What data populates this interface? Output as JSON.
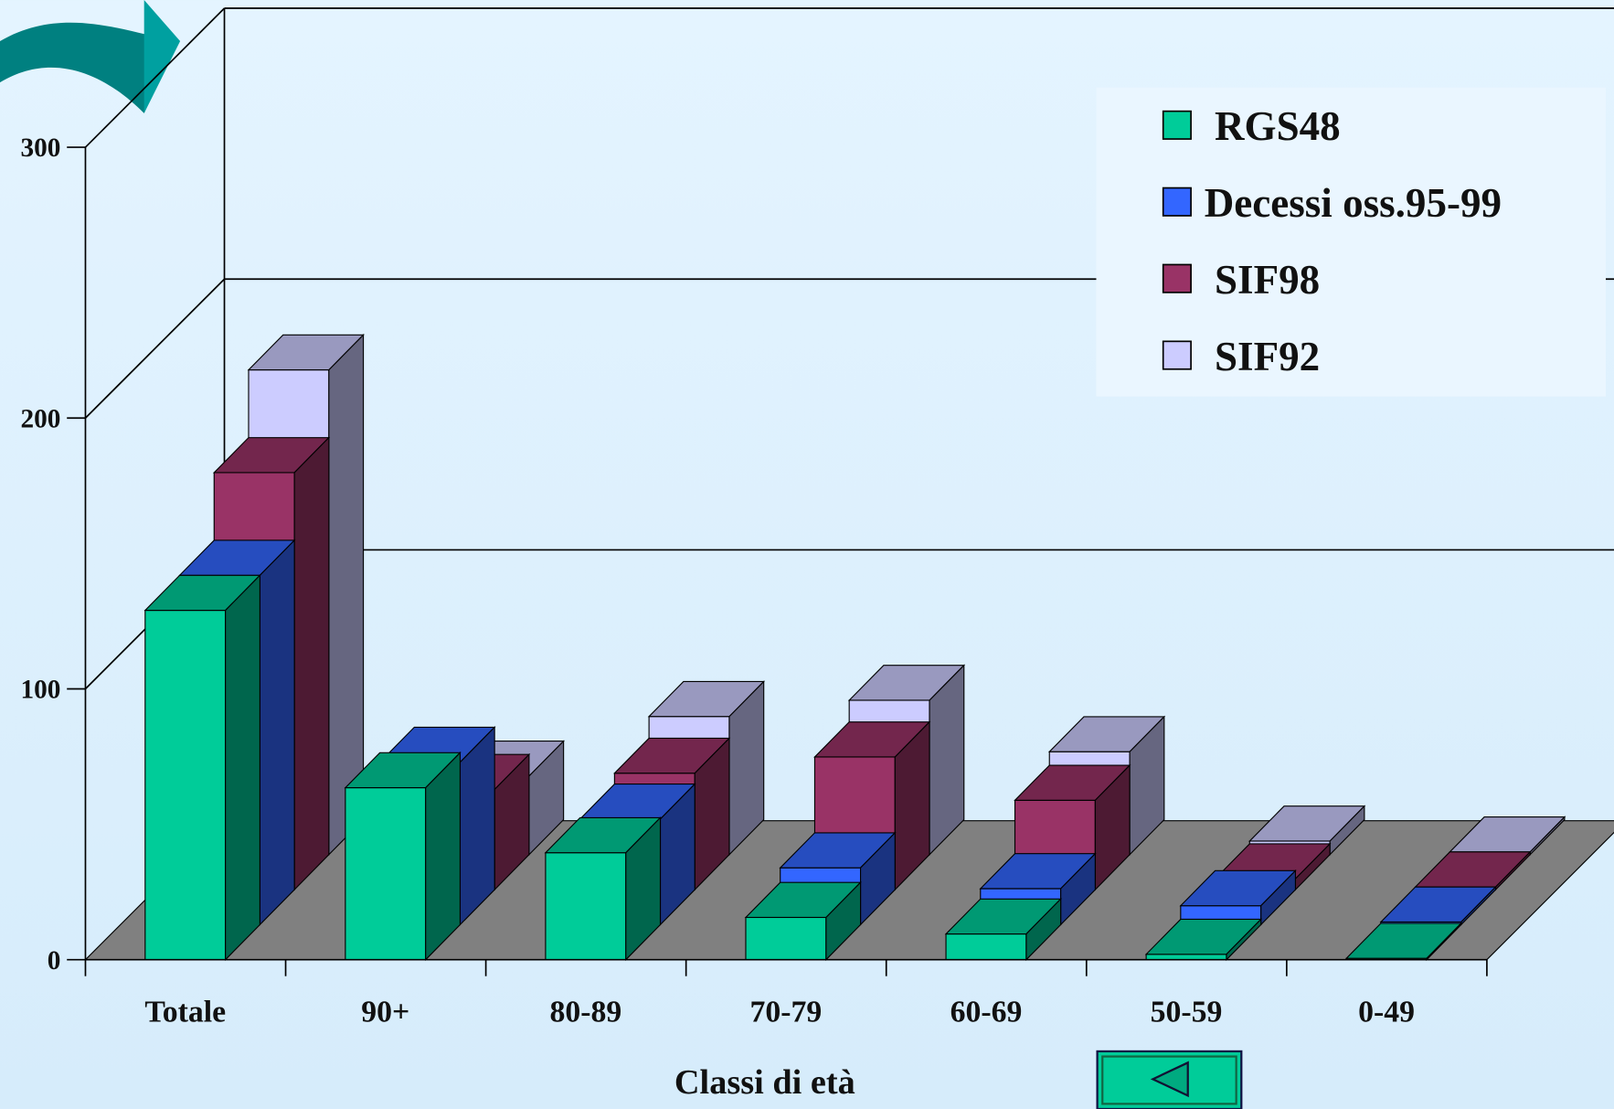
{
  "chart_data": {
    "type": "bar3d",
    "categories": [
      "Totale",
      "90+",
      "80-89",
      "70-79",
      "60-69",
      "50-59",
      "0-49"
    ],
    "series": [
      {
        "name": "RGS48",
        "color": "#00cc99",
        "values": [
          129,
          63.5,
          39.5,
          15.6,
          9.5,
          2,
          0.5
        ]
      },
      {
        "name": "Decessi oss.95-99",
        "color": "#3366ff",
        "values": [
          129,
          60,
          39,
          21,
          13.3,
          7,
          1
        ]
      },
      {
        "name": "SIF98",
        "color": "#993366",
        "values": [
          154,
          37,
          43,
          49,
          33,
          4,
          1
        ]
      },
      {
        "name": "SIF92",
        "color": "#ccccff",
        "values": [
          179,
          29,
          51,
          57,
          38,
          5,
          1
        ]
      }
    ],
    "ylim": [
      0,
      300
    ],
    "yticks": [
      0,
      100,
      200,
      300
    ],
    "grid": true,
    "x_label": "Classi di età"
  }
}
